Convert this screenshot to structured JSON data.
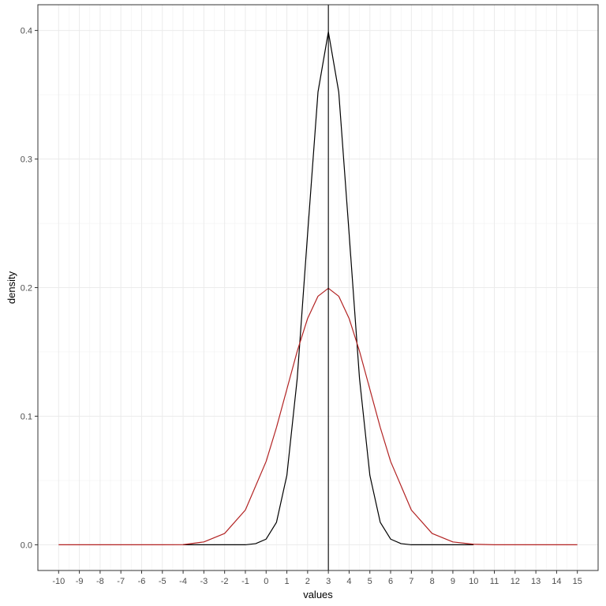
{
  "chart_data": {
    "type": "line",
    "title": "",
    "xlabel": "values",
    "ylabel": "density",
    "xlim": [
      -11.0,
      16.0
    ],
    "ylim": [
      -0.02,
      0.42
    ],
    "x_ticks": [
      -10,
      -9,
      -8,
      -7,
      -6,
      -5,
      -4,
      -3,
      -2,
      -1,
      0,
      1,
      2,
      3,
      4,
      5,
      6,
      7,
      8,
      9,
      10,
      11,
      12,
      13,
      14,
      15
    ],
    "x_tick_labels": [
      "-10",
      "-9",
      "-8",
      "-7",
      "-6",
      "-5",
      "-4",
      "-3",
      "-2",
      "-1",
      "0",
      "1",
      "2",
      "3",
      "4",
      "5",
      "6",
      "7",
      "8",
      "9",
      "10",
      "11",
      "12",
      "13",
      "14",
      "15"
    ],
    "y_ticks": [
      0.0,
      0.1,
      0.2,
      0.3,
      0.4
    ],
    "y_tick_labels": [
      "0.0",
      "0.1",
      "0.2",
      "0.3",
      "0.4"
    ],
    "grid": true,
    "legend": "none",
    "series": [
      {
        "color": "#000000",
        "x": [
          -4,
          -3,
          -2,
          -1,
          -0.5,
          0,
          0.5,
          1,
          1.5,
          2,
          2.5,
          3,
          3.5,
          4,
          4.5,
          5,
          5.5,
          6,
          6.5,
          7,
          8,
          9,
          10
        ],
        "y": [
          0.0,
          0.0,
          0.0,
          0.0,
          0.0009,
          0.0044,
          0.0175,
          0.054,
          0.1295,
          0.242,
          0.3521,
          0.3989,
          0.3521,
          0.242,
          0.1295,
          0.054,
          0.0175,
          0.0044,
          0.0009,
          0.0,
          0.0,
          0.0,
          0.0
        ]
      },
      {
        "color": "#b22222",
        "x": [
          -10,
          -8,
          -6,
          -5,
          -4,
          -3,
          -2,
          -1,
          0,
          0.5,
          1,
          1.5,
          2,
          2.5,
          3,
          3.5,
          4,
          4.5,
          5,
          5.5,
          6,
          7,
          8,
          9,
          10,
          11,
          12,
          15
        ],
        "y": [
          0.0,
          0.0,
          0.0,
          0.0,
          0.0001,
          0.0022,
          0.0088,
          0.027,
          0.0648,
          0.0913,
          0.121,
          0.1506,
          0.176,
          0.1933,
          0.1995,
          0.1933,
          0.176,
          0.1506,
          0.121,
          0.0913,
          0.0648,
          0.027,
          0.0088,
          0.0022,
          0.0004,
          0.0,
          0.0,
          0.0
        ]
      }
    ],
    "vline": {
      "x": 3,
      "color": "#000000"
    }
  }
}
